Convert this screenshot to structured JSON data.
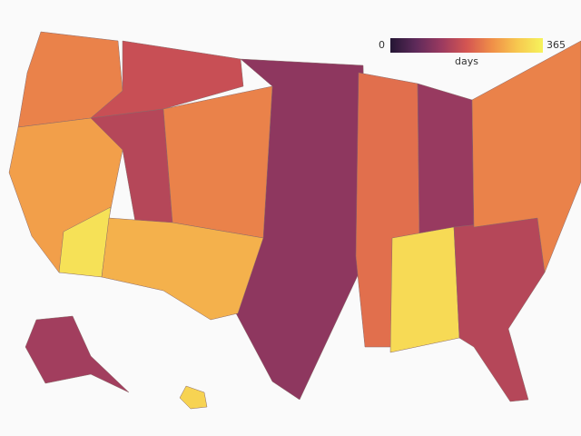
{
  "map": {
    "colorbar": {
      "min": 0,
      "max": 365,
      "label": "days",
      "colors": [
        "#241634",
        "#5e2a5a",
        "#9a3a60",
        "#d45552",
        "#f08f48",
        "#f7c84f",
        "#f6f35c"
      ]
    },
    "regions": [
      110,
      230,
      260,
      340,
      170,
      150,
      230,
      280,
      210,
      120,
      330,
      150,
      230,
      130,
      320
    ]
  }
}
